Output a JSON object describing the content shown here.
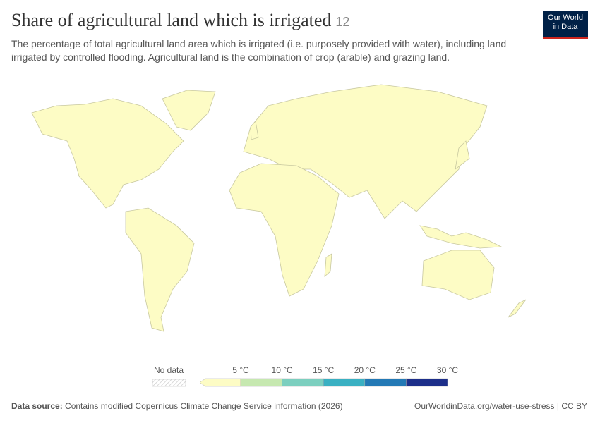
{
  "header": {
    "title": "Share of agricultural land which is irrigated",
    "badge": "12",
    "subtitle": "The percentage of total agricultural land area which is irrigated (i.e. purposely provided with water), including land irrigated by controlled flooding. Agricultural land is the combination of crop (arable) and grazing land."
  },
  "logo": {
    "line1": "Our World",
    "line2": "in Data"
  },
  "legend": {
    "no_data": "No data",
    "first_color": "#fdfcc5",
    "bins": [
      {
        "label": "5 °C",
        "color": "#c6e8b0"
      },
      {
        "label": "10 °C",
        "color": "#7ccfbf"
      },
      {
        "label": "15 °C",
        "color": "#3ab0c2"
      },
      {
        "label": "20 °C",
        "color": "#2379b5"
      },
      {
        "label": "25 °C",
        "color": "#1d2f8a"
      },
      {
        "label": "30 °C",
        "color": null
      }
    ]
  },
  "footer": {
    "source_label": "Data source:",
    "source": "Contains modified Copernicus Climate Change Service information (2026)",
    "link": "OurWorldinData.org/water-use-stress | CC BY"
  }
}
